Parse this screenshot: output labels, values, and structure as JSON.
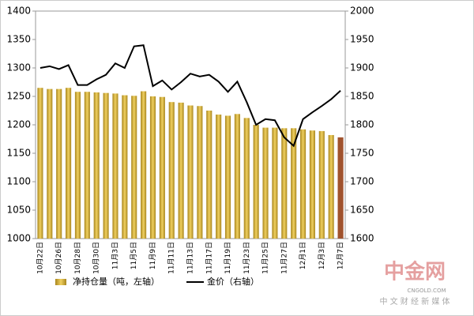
{
  "chart_data": {
    "type": "bar_line",
    "categories": [
      "10月22日",
      null,
      "10月26日",
      null,
      "10月28日",
      null,
      "10月30日",
      null,
      "11月3日",
      null,
      "11月5日",
      null,
      "11月9日",
      null,
      "11月11日",
      null,
      "11月13日",
      null,
      "11月17日",
      null,
      "11月19日",
      null,
      "11月23日",
      null,
      "11月25日",
      null,
      "11月27日",
      null,
      "12月1日",
      null,
      "12月3日",
      null,
      "12月7日"
    ],
    "series": [
      {
        "name": "净持仓量（吨，左轴）",
        "type": "bar",
        "color": "#c9a42c",
        "colors": [
          "#c9a42c",
          "#c9a42c",
          "#c9a42c",
          "#c9a42c",
          "#c9a42c",
          "#c9a42c",
          "#c9a42c",
          "#c9a42c",
          "#c9a42c",
          "#c9a42c",
          "#c9a42c",
          "#c9a42c",
          "#c9a42c",
          "#c9a42c",
          "#c9a42c",
          "#c9a42c",
          "#c9a42c",
          "#c9a42c",
          "#c9a42c",
          "#c9a42c",
          "#c9a42c",
          "#c9a42c",
          "#c9a42c",
          "#c9a42c",
          "#c9a42c",
          "#c9a42c",
          "#c9a42c",
          "#c9a42c",
          "#c9a42c",
          "#c9a42c",
          "#c9a42c",
          "#c9a42c",
          "#a0522d"
        ],
        "values": [
          1265,
          1263,
          1263,
          1265,
          1258,
          1258,
          1257,
          1256,
          1255,
          1252,
          1251,
          1259,
          1250,
          1249,
          1240,
          1239,
          1234,
          1233,
          1225,
          1218,
          1216,
          1219,
          1212,
          1200,
          1195,
          1195,
          1194,
          1194,
          1192,
          1190,
          1189,
          1182,
          1178
        ]
      },
      {
        "name": "金价（右轴）",
        "type": "line",
        "axis": "y2",
        "color": "#000000",
        "values": [
          1900,
          1903,
          1898,
          1905,
          1870,
          1870,
          1880,
          1888,
          1908,
          1900,
          1938,
          1940,
          1868,
          1878,
          1862,
          1875,
          1890,
          1885,
          1888,
          1876,
          1858,
          1876,
          1840,
          1800,
          1810,
          1808,
          1778,
          1763,
          1810,
          1822,
          1833,
          1845,
          1860
        ]
      }
    ],
    "ylim": [
      1000,
      1400
    ],
    "yticks": [
      1000,
      1050,
      1100,
      1150,
      1200,
      1250,
      1300,
      1350,
      1400
    ],
    "y2lim": [
      1600,
      2000
    ],
    "y2ticks": [
      1600,
      1650,
      1700,
      1750,
      1800,
      1850,
      1900,
      1950,
      2000
    ],
    "grid": false,
    "legend": "bottom",
    "watermark": {
      "logo": "中金网",
      "site": "CNGOLD.COM",
      "slogan": "中 文 财 经 新 媒 体"
    }
  }
}
